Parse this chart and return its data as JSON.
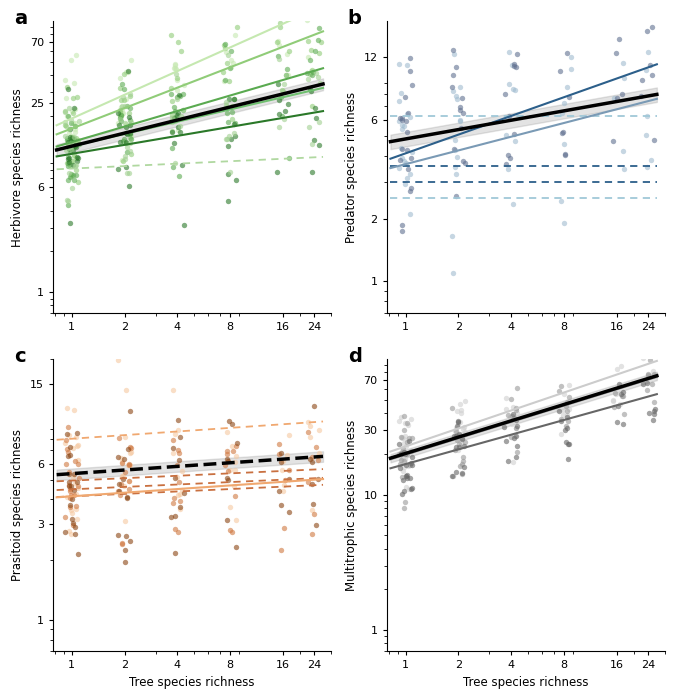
{
  "x_vals": [
    1,
    2,
    4,
    8,
    16,
    24
  ],
  "x_ticks": [
    1,
    2,
    4,
    8,
    16,
    24
  ],
  "panel_a": {
    "label": "a",
    "ylabel": "Herbivore species richness",
    "yticks": [
      1,
      6,
      25,
      70
    ],
    "ylim": [
      0.7,
      100
    ],
    "scatter_groups": [
      {
        "color": "#c5e8b0",
        "slope": 0.55,
        "intercept": 2.85,
        "noise": 0.55
      },
      {
        "color": "#90cc78",
        "slope": 0.48,
        "intercept": 2.7,
        "noise": 0.5
      },
      {
        "color": "#5aaa50",
        "slope": 0.38,
        "intercept": 2.55,
        "noise": 0.5
      },
      {
        "color": "#2a7828",
        "slope": 0.22,
        "intercept": 2.35,
        "noise": 0.5
      },
      {
        "color": "#a0d090",
        "slope": 0.3,
        "intercept": 2.45,
        "noise": 0.5
      }
    ],
    "solid_lines": [
      {
        "color": "#c5e8b0",
        "slope": 0.58,
        "intercept": 2.95
      },
      {
        "color": "#90cc78",
        "slope": 0.5,
        "intercept": 2.78
      },
      {
        "color": "#5aaa50",
        "slope": 0.38,
        "intercept": 2.55
      },
      {
        "color": "#2a7828",
        "slope": 0.22,
        "intercept": 2.35
      },
      {
        "color": "#70c070",
        "slope": 0.3,
        "intercept": 2.48
      }
    ],
    "dashed_lines": [
      {
        "color": "#b0d8a0",
        "slope": 0.06,
        "intercept": 2.1
      }
    ],
    "overall_slope": 0.32,
    "overall_intercept": 2.48,
    "overall_color": "#000000",
    "ci_factor": 0.1
  },
  "panel_b": {
    "label": "b",
    "ylabel": "Predator species richness",
    "yticks": [
      1,
      2,
      6,
      12
    ],
    "ylim": [
      0.7,
      18
    ],
    "scatter_groups": [
      {
        "color": "#a0bcd0",
        "slope": 0.18,
        "intercept": 1.6,
        "noise": 0.52
      },
      {
        "color": "#607090",
        "slope": 0.22,
        "intercept": 1.55,
        "noise": 0.52
      }
    ],
    "dashed_lines": [
      {
        "color": "#a0c8d8",
        "slope": 0.0,
        "intercept": 1.84
      },
      {
        "color": "#2c5f8a",
        "slope": 0.0,
        "intercept": 1.28
      },
      {
        "color": "#2c5f8a",
        "slope": 0.0,
        "intercept": 1.1
      },
      {
        "color": "#a0c8d8",
        "slope": 0.0,
        "intercept": 0.92
      }
    ],
    "solid_lines": [
      {
        "color": "#2c5f8a",
        "slope": 0.3,
        "intercept": 1.42
      },
      {
        "color": "#7a9ab5",
        "slope": 0.22,
        "intercept": 1.3
      }
    ],
    "overall_slope": 0.15,
    "overall_intercept": 1.58,
    "overall_color": "#000000",
    "ci_factor": 0.08
  },
  "panel_c": {
    "label": "c",
    "ylabel": "Prasitoid species richness",
    "yticks": [
      1,
      3,
      6,
      15
    ],
    "ylim": [
      0.7,
      20
    ],
    "scatter_groups": [
      {
        "color": "#f5c8a0",
        "slope": 0.06,
        "intercept": 1.62,
        "noise": 0.45
      },
      {
        "color": "#d07840",
        "slope": 0.05,
        "intercept": 1.58,
        "noise": 0.45
      },
      {
        "color": "#8b4513",
        "slope": 0.06,
        "intercept": 1.56,
        "noise": 0.45
      }
    ],
    "dashed_lines": [
      {
        "color": "#f0a870",
        "slope": 0.06,
        "intercept": 2.08
      },
      {
        "color": "#c97040",
        "slope": 0.04,
        "intercept": 1.6
      },
      {
        "color": "#c97040",
        "slope": 0.04,
        "intercept": 1.5
      },
      {
        "color": "#c97040",
        "slope": 0.04,
        "intercept": 1.42
      }
    ],
    "solid_lines": [
      {
        "color": "#f0a870",
        "slope": 0.06,
        "intercept": 1.42
      }
    ],
    "overall_slope": 0.06,
    "overall_intercept": 1.68,
    "overall_color": "#000000",
    "overall_dashed": true,
    "ci_factor": 0.06
  },
  "panel_d": {
    "label": "d",
    "ylabel": "Multitrophic species richness",
    "yticks": [
      1,
      10,
      30,
      70
    ],
    "ylim": [
      0.7,
      100
    ],
    "scatter_groups": [
      {
        "color": "#d0d0d0",
        "slope": 0.42,
        "intercept": 3.08,
        "noise": 0.3
      },
      {
        "color": "#999999",
        "slope": 0.38,
        "intercept": 2.95,
        "noise": 0.3
      },
      {
        "color": "#666666",
        "slope": 0.35,
        "intercept": 2.8,
        "noise": 0.3
      }
    ],
    "solid_lines": [
      {
        "color": "#cccccc",
        "slope": 0.44,
        "intercept": 3.12
      },
      {
        "color": "#999999",
        "slope": 0.4,
        "intercept": 2.98
      },
      {
        "color": "#666666",
        "slope": 0.36,
        "intercept": 2.82
      }
    ],
    "overall_slope": 0.4,
    "overall_intercept": 3.0,
    "overall_color": "#000000",
    "ci_factor": 0.07
  },
  "n_per": [
    20,
    14,
    10,
    9,
    6,
    7
  ],
  "xlabel": "Tree species richness"
}
